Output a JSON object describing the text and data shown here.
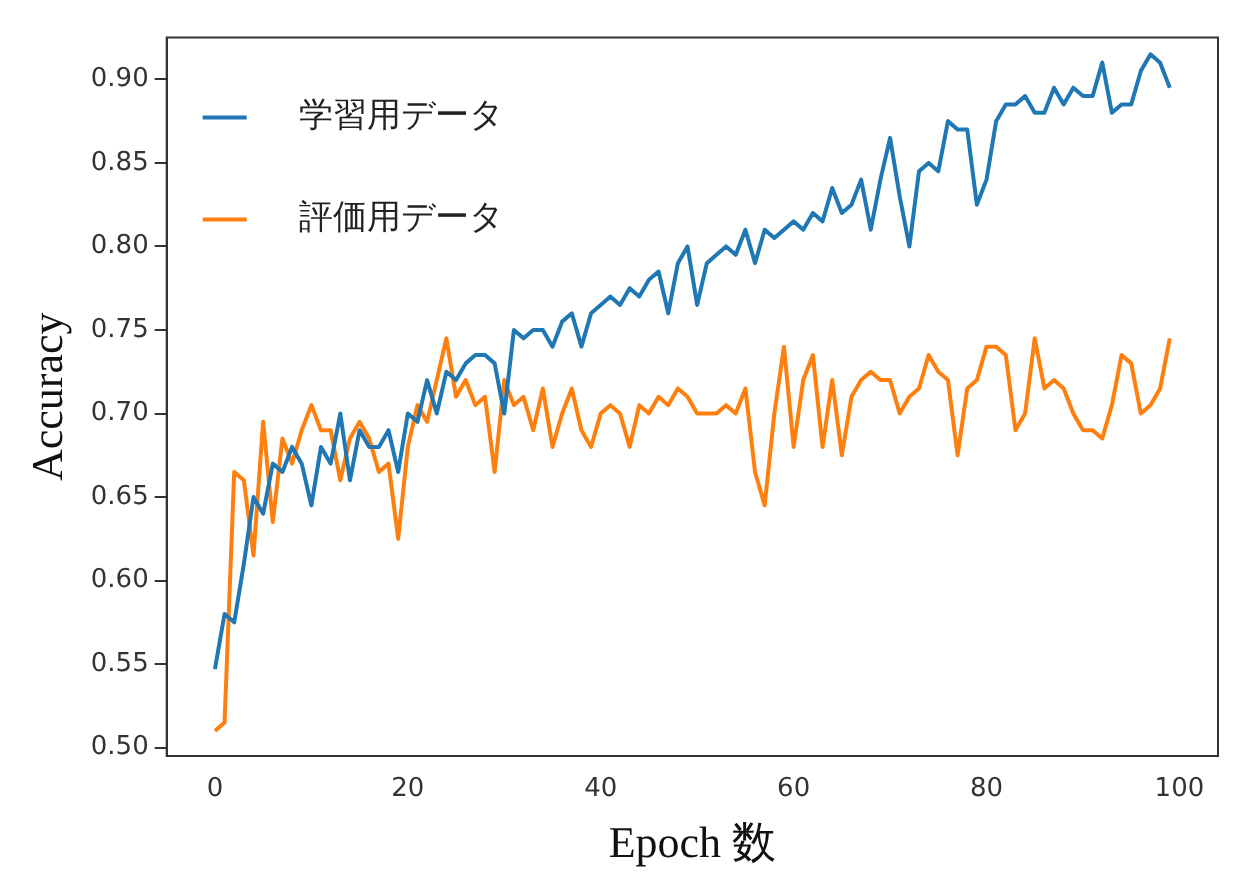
{
  "chart_data": {
    "type": "line",
    "xlabel": "Epoch 数",
    "ylabel": "Accuracy",
    "x": [
      0,
      1,
      2,
      3,
      4,
      5,
      6,
      7,
      8,
      9,
      10,
      11,
      12,
      13,
      14,
      15,
      16,
      17,
      18,
      19,
      20,
      21,
      22,
      23,
      24,
      25,
      26,
      27,
      28,
      29,
      30,
      31,
      32,
      33,
      34,
      35,
      36,
      37,
      38,
      39,
      40,
      41,
      42,
      43,
      44,
      45,
      46,
      47,
      48,
      49,
      50,
      51,
      52,
      53,
      54,
      55,
      56,
      57,
      58,
      59,
      60,
      61,
      62,
      63,
      64,
      65,
      66,
      67,
      68,
      69,
      70,
      71,
      72,
      73,
      74,
      75,
      76,
      77,
      78,
      79,
      80,
      81,
      82,
      83,
      84,
      85,
      86,
      87,
      88,
      89,
      90,
      91,
      92,
      93,
      94,
      95,
      96,
      97,
      98,
      99
    ],
    "series": [
      {
        "name": "学習用データ",
        "color": "#1f77b4",
        "values": [
          0.547,
          0.58,
          0.575,
          0.61,
          0.65,
          0.64,
          0.67,
          0.665,
          0.68,
          0.67,
          0.645,
          0.68,
          0.67,
          0.7,
          0.66,
          0.69,
          0.68,
          0.68,
          0.69,
          0.665,
          0.7,
          0.695,
          0.72,
          0.7,
          0.725,
          0.72,
          0.73,
          0.735,
          0.735,
          0.73,
          0.7,
          0.75,
          0.745,
          0.75,
          0.75,
          0.74,
          0.755,
          0.76,
          0.74,
          0.76,
          0.765,
          0.77,
          0.765,
          0.775,
          0.77,
          0.78,
          0.785,
          0.76,
          0.79,
          0.8,
          0.765,
          0.79,
          0.795,
          0.8,
          0.795,
          0.81,
          0.79,
          0.81,
          0.805,
          0.81,
          0.815,
          0.81,
          0.82,
          0.815,
          0.835,
          0.82,
          0.825,
          0.84,
          0.81,
          0.84,
          0.865,
          0.83,
          0.8,
          0.845,
          0.85,
          0.845,
          0.875,
          0.87,
          0.87,
          0.825,
          0.84,
          0.875,
          0.885,
          0.885,
          0.89,
          0.88,
          0.88,
          0.895,
          0.885,
          0.895,
          0.89,
          0.89,
          0.91,
          0.88,
          0.885,
          0.885,
          0.905,
          0.915,
          0.91,
          0.895
        ]
      },
      {
        "name": "評価用データ",
        "color": "#ff7f0e",
        "values": [
          0.51,
          0.515,
          0.665,
          0.66,
          0.615,
          0.695,
          0.635,
          0.685,
          0.67,
          0.69,
          0.705,
          0.69,
          0.69,
          0.66,
          0.685,
          0.695,
          0.685,
          0.665,
          0.67,
          0.625,
          0.68,
          0.705,
          0.695,
          0.72,
          0.745,
          0.71,
          0.72,
          0.705,
          0.71,
          0.665,
          0.72,
          0.705,
          0.71,
          0.69,
          0.715,
          0.68,
          0.7,
          0.715,
          0.69,
          0.68,
          0.7,
          0.705,
          0.7,
          0.68,
          0.705,
          0.7,
          0.71,
          0.705,
          0.715,
          0.71,
          0.7,
          0.7,
          0.7,
          0.705,
          0.7,
          0.715,
          0.665,
          0.645,
          0.7,
          0.74,
          0.68,
          0.72,
          0.735,
          0.68,
          0.72,
          0.675,
          0.71,
          0.72,
          0.725,
          0.72,
          0.72,
          0.7,
          0.71,
          0.715,
          0.735,
          0.725,
          0.72,
          0.675,
          0.715,
          0.72,
          0.74,
          0.74,
          0.735,
          0.69,
          0.7,
          0.745,
          0.715,
          0.72,
          0.715,
          0.7,
          0.69,
          0.69,
          0.685,
          0.705,
          0.735,
          0.73,
          0.7,
          0.705,
          0.715,
          0.745
        ]
      }
    ],
    "xlim": [
      -5,
      104
    ],
    "xticks": [
      0,
      20,
      40,
      60,
      80,
      100
    ],
    "ylim": [
      0.495,
      0.925
    ],
    "yticks": [
      {
        "value": 0.5,
        "label": "0.50"
      },
      {
        "value": 0.55,
        "label": "0.55"
      },
      {
        "value": 0.6,
        "label": "0.60"
      },
      {
        "value": 0.65,
        "label": "0.65"
      },
      {
        "value": 0.7,
        "label": "0.70"
      },
      {
        "value": 0.75,
        "label": "0.75"
      },
      {
        "value": 0.8,
        "label": "0.80"
      },
      {
        "value": 0.85,
        "label": "0.85"
      },
      {
        "value": 0.9,
        "label": "0.90"
      }
    ],
    "grid": false,
    "legend": "top left",
    "marker": "none",
    "line_style": "solid"
  }
}
